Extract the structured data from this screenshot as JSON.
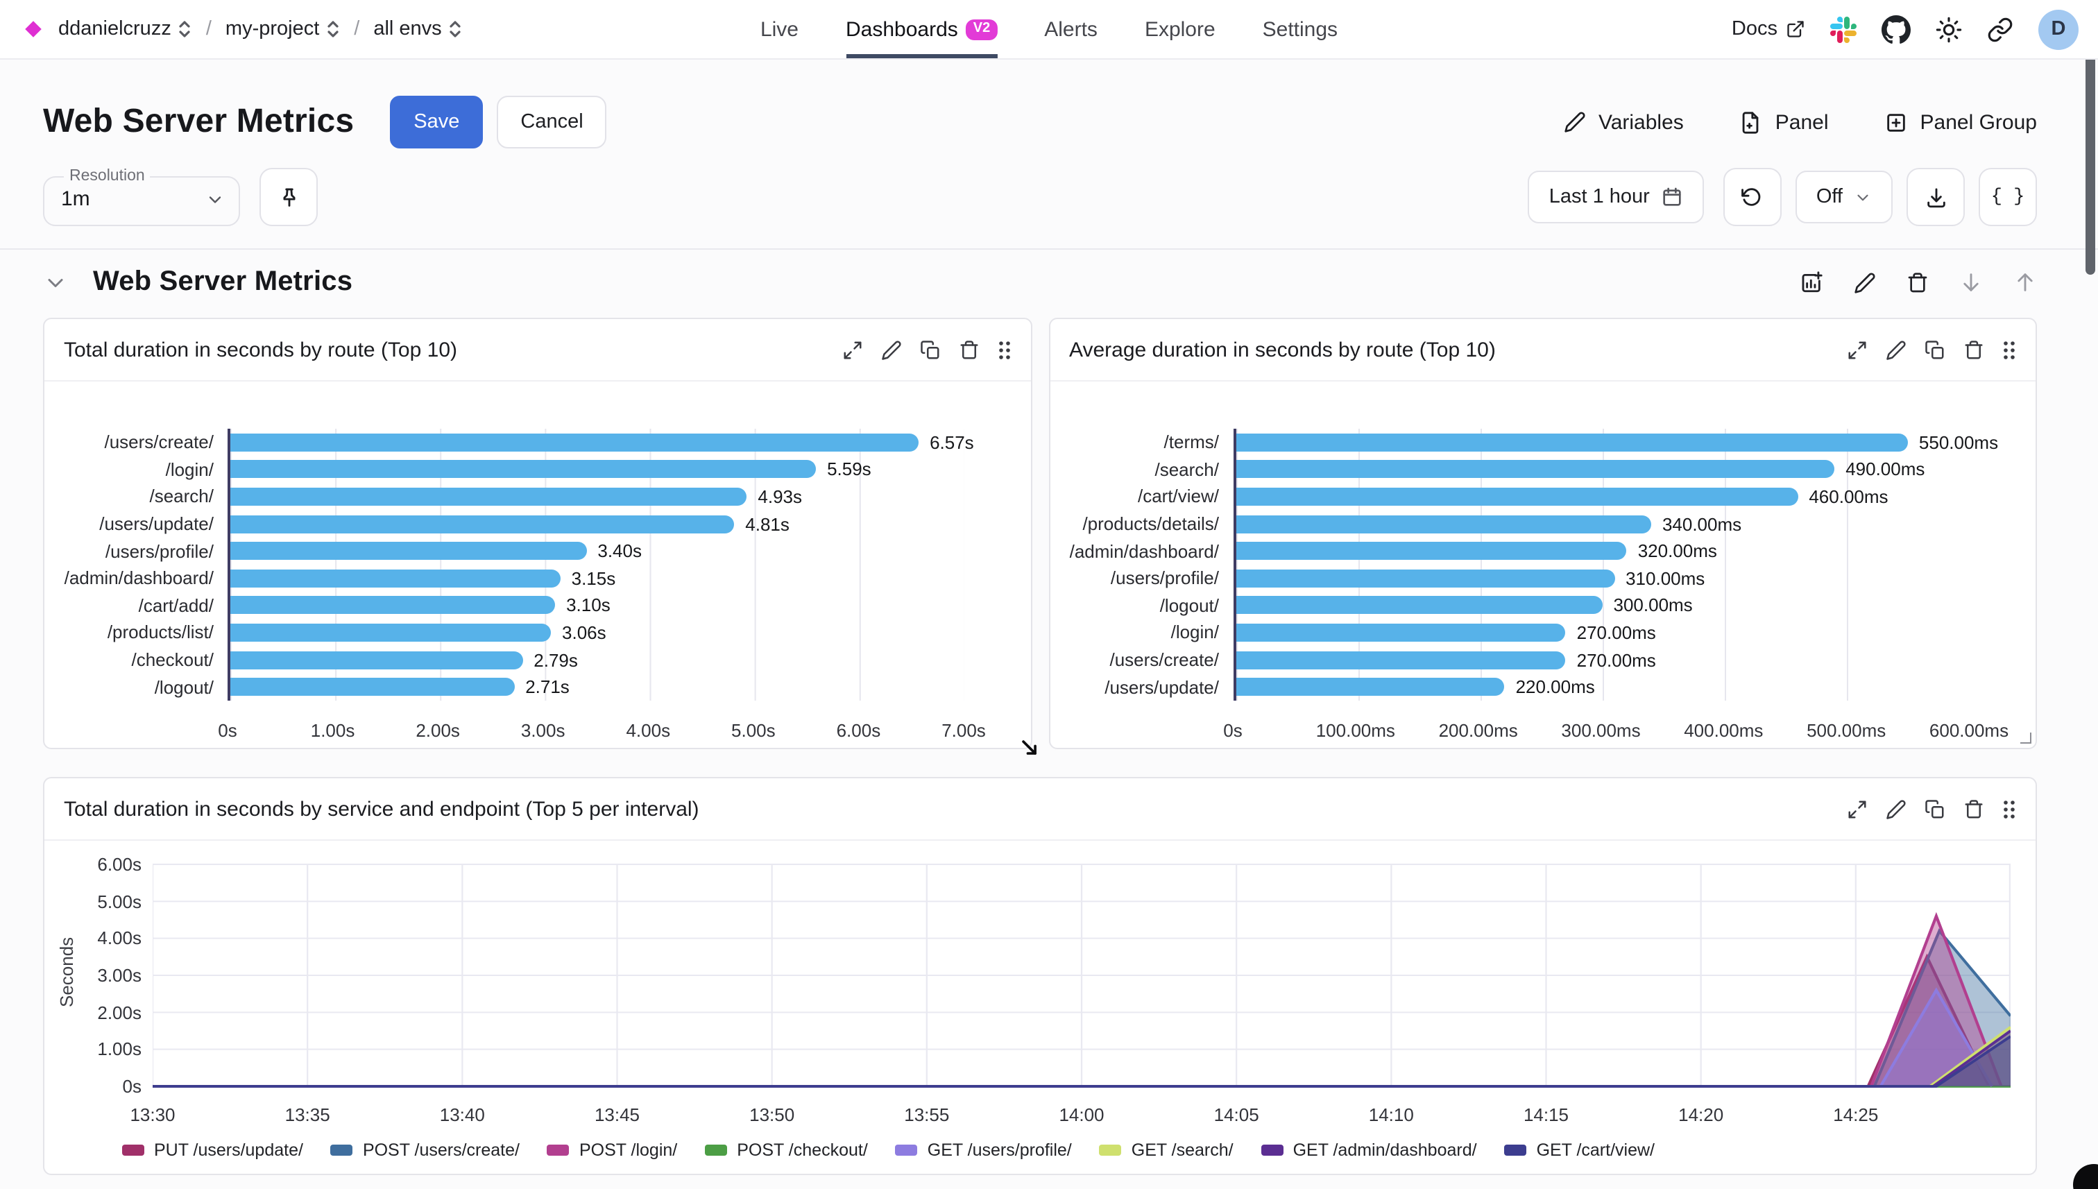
{
  "colors": {
    "accent": "#3d6dd8",
    "badge": "#e23bd7"
  },
  "nav": {
    "breadcrumbs": [
      {
        "label": "ddanielcruzz"
      },
      {
        "label": "my-project"
      },
      {
        "label": "all envs"
      }
    ],
    "separator": "/",
    "tabs": [
      {
        "label": "Live"
      },
      {
        "label": "Dashboards",
        "badge": "V2",
        "active": true
      },
      {
        "label": "Alerts"
      },
      {
        "label": "Explore"
      },
      {
        "label": "Settings"
      }
    ],
    "docs_label": "Docs",
    "avatar_initial": "D"
  },
  "header": {
    "title": "Web Server Metrics",
    "save_label": "Save",
    "cancel_label": "Cancel",
    "actions": [
      {
        "label": "Variables"
      },
      {
        "label": "Panel"
      },
      {
        "label": "Panel Group"
      }
    ]
  },
  "toolbar": {
    "resolution_label": "Resolution",
    "resolution_value": "1m",
    "time_range": "Last 1 hour",
    "refresh_value": "Off",
    "braces_label": "{ }"
  },
  "section": {
    "title": "Web Server Metrics"
  },
  "chart_data": [
    {
      "type": "bar",
      "orientation": "horizontal",
      "title": "Total duration in seconds by route (Top 10)",
      "categories": [
        "/users/create/",
        "/login/",
        "/search/",
        "/users/update/",
        "/users/profile/",
        "/admin/dashboard/",
        "/cart/add/",
        "/products/list/",
        "/checkout/",
        "/logout/"
      ],
      "values": [
        6.57,
        5.59,
        4.93,
        4.81,
        3.4,
        3.15,
        3.1,
        3.06,
        2.79,
        2.71
      ],
      "value_labels": [
        "6.57s",
        "5.59s",
        "4.93s",
        "4.81s",
        "3.40s",
        "3.15s",
        "3.10s",
        "3.06s",
        "2.79s",
        "2.71s"
      ],
      "x_ticks": [
        "0s",
        "1.00s",
        "2.00s",
        "3.00s",
        "4.00s",
        "5.00s",
        "6.00s",
        "7.00s"
      ],
      "xmax": 7,
      "bar_color": "#57b2e9",
      "grid": true
    },
    {
      "type": "bar",
      "orientation": "horizontal",
      "title": "Average duration in seconds by route (Top 10)",
      "categories": [
        "/terms/",
        "/search/",
        "/cart/view/",
        "/products/details/",
        "/admin/dashboard/",
        "/users/profile/",
        "/logout/",
        "/login/",
        "/users/create/",
        "/users/update/"
      ],
      "values": [
        550,
        490,
        460,
        340,
        320,
        310,
        300,
        270,
        270,
        220
      ],
      "value_labels": [
        "550.00ms",
        "490.00ms",
        "460.00ms",
        "340.00ms",
        "320.00ms",
        "310.00ms",
        "300.00ms",
        "270.00ms",
        "270.00ms",
        "220.00ms"
      ],
      "x_ticks": [
        "0s",
        "100.00ms",
        "200.00ms",
        "300.00ms",
        "400.00ms",
        "500.00ms",
        "600.00ms"
      ],
      "xmax": 600,
      "bar_color": "#57b2e9",
      "grid": true
    },
    {
      "type": "area",
      "title": "Total duration in seconds by service and endpoint (Top 5 per interval)",
      "ylabel": "Seconds",
      "y_ticks": [
        "6.00s",
        "5.00s",
        "4.00s",
        "3.00s",
        "2.00s",
        "1.00s",
        "0s"
      ],
      "ymax": 6,
      "x_ticks": [
        "13:30",
        "13:35",
        "13:40",
        "13:45",
        "13:50",
        "13:55",
        "14:00",
        "14:05",
        "14:10",
        "14:15",
        "14:20",
        "14:25"
      ],
      "x_span_minutes": 60,
      "legend_position": "bottom",
      "grid": true,
      "series": [
        {
          "name": "PUT /users/update/",
          "color": "#a03069",
          "points": [
            [
              0,
              0
            ],
            [
              55.4,
              0
            ],
            [
              57.3,
              3.5
            ],
            [
              59.3,
              0
            ]
          ]
        },
        {
          "name": "POST /users/create/",
          "color": "#3f6e9e",
          "points": [
            [
              0,
              0
            ],
            [
              55.6,
              0
            ],
            [
              57.7,
              4.2
            ],
            [
              60,
              1.9
            ]
          ]
        },
        {
          "name": "POST /login/",
          "color": "#b23f8f",
          "points": [
            [
              0,
              0
            ],
            [
              55.5,
              0
            ],
            [
              57.6,
              4.6
            ],
            [
              59.7,
              0
            ]
          ]
        },
        {
          "name": "POST /checkout/",
          "color": "#4c9e45",
          "points": [
            [
              0,
              0
            ],
            [
              60,
              0
            ]
          ]
        },
        {
          "name": "GET /users/profile/",
          "color": "#8d7ce0",
          "points": [
            [
              0,
              0
            ],
            [
              55.8,
              0
            ],
            [
              57.6,
              2.6
            ],
            [
              59.4,
              0
            ]
          ]
        },
        {
          "name": "GET /search/",
          "color": "#cfe06e",
          "points": [
            [
              0,
              0
            ],
            [
              57.4,
              0
            ],
            [
              60,
              1.6
            ]
          ]
        },
        {
          "name": "GET /admin/dashboard/",
          "color": "#5b2e92",
          "points": [
            [
              0,
              0
            ],
            [
              57.5,
              0
            ],
            [
              60,
              1.5
            ]
          ]
        },
        {
          "name": "GET /cart/view/",
          "color": "#3c3d8f",
          "points": [
            [
              0,
              0
            ],
            [
              57.6,
              0
            ],
            [
              60,
              1.35
            ]
          ]
        }
      ]
    }
  ]
}
